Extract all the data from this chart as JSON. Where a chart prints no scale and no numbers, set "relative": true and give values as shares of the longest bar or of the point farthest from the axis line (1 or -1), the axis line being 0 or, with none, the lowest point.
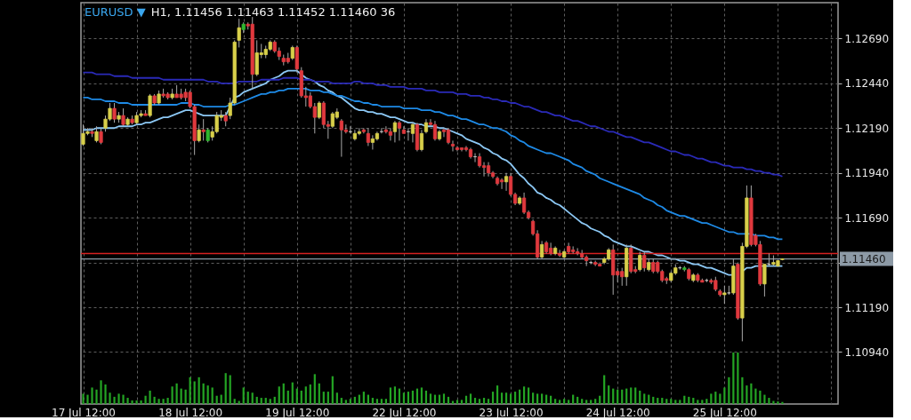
{
  "chart_data": [
    {
      "type": "candlestick",
      "title": "EURUSD ▼",
      "subtitle": "H1, 1.11456 1.11463 1.11452 1.11460 36",
      "categories": [
        "17 Jul 12:00",
        null,
        null,
        null,
        null,
        null,
        null,
        null,
        null,
        null,
        null,
        null,
        null,
        null,
        null,
        null,
        null,
        null,
        null,
        null,
        null,
        null,
        null,
        null,
        "18 Jul 12:00",
        null,
        null,
        null,
        null,
        null,
        null,
        null,
        null,
        null,
        null,
        null,
        null,
        null,
        null,
        null,
        null,
        null,
        null,
        null,
        null,
        null,
        null,
        null,
        "19 Jul 12:00",
        null,
        null,
        null,
        null,
        null,
        null,
        null,
        null,
        null,
        null,
        null,
        null,
        null,
        null,
        null,
        null,
        null,
        null,
        null,
        null,
        null,
        null,
        null,
        "22 Jul 12:00",
        null,
        null,
        null,
        null,
        null,
        null,
        null,
        null,
        null,
        null,
        null,
        null,
        null,
        null,
        null,
        null,
        null,
        null,
        null,
        null,
        null,
        null,
        null,
        "23 Jul 12:00",
        null,
        null,
        null,
        null,
        null,
        null,
        null,
        null,
        null,
        null,
        null,
        null,
        null,
        null,
        null,
        null,
        null,
        null,
        null,
        null,
        null,
        null,
        null,
        "24 Jul 12:00",
        null,
        null,
        null,
        null,
        null,
        null,
        null,
        null,
        null,
        null,
        null,
        null,
        null,
        null,
        null,
        null,
        null,
        null,
        null,
        null,
        null,
        null,
        null,
        "25 Jul 12:00",
        null,
        null,
        null,
        null,
        null,
        null,
        null,
        null,
        null,
        null,
        null,
        null,
        null,
        null,
        null,
        null,
        null,
        null,
        null,
        null,
        null,
        null,
        null,
        null,
        null
      ],
      "ohlc": [
        [
          1.121,
          1.1221,
          1.1209,
          1.1216
        ],
        [
          1.1216,
          1.1219,
          1.1215,
          1.1217
        ],
        [
          1.1217,
          1.1219,
          1.1214,
          1.1216
        ],
        [
          1.1212,
          1.122,
          1.1211,
          1.1217
        ],
        [
          1.1217,
          1.1219,
          1.121,
          1.1211
        ],
        [
          1.1219,
          1.1226,
          1.1217,
          1.1224
        ],
        [
          1.1224,
          1.1233,
          1.1223,
          1.123
        ],
        [
          1.123,
          1.1233,
          1.1222,
          1.1224
        ],
        [
          1.1224,
          1.1228,
          1.1222,
          1.1226
        ],
        [
          1.1226,
          1.123,
          1.122,
          1.1221
        ],
        [
          1.1221,
          1.1225,
          1.122,
          1.1224
        ],
        [
          1.1224,
          1.1226,
          1.1221,
          1.1222
        ],
        [
          1.1222,
          1.1228,
          1.1221,
          1.1226
        ],
        [
          1.1226,
          1.1229,
          1.1225,
          1.1227
        ],
        [
          1.1227,
          1.1229,
          1.1226,
          1.1226
        ],
        [
          1.1226,
          1.1238,
          1.1225,
          1.1237
        ],
        [
          1.1237,
          1.1238,
          1.1232,
          1.1233
        ],
        [
          1.1233,
          1.124,
          1.1232,
          1.1238
        ],
        [
          1.1238,
          1.1241,
          1.1236,
          1.1237
        ],
        [
          1.1238,
          1.1239,
          1.1235,
          1.1236
        ],
        [
          1.1236,
          1.1241,
          1.1235,
          1.1238
        ],
        [
          1.1238,
          1.1243,
          1.1236,
          1.1236
        ],
        [
          1.1238,
          1.1241,
          1.1235,
          1.1236
        ],
        [
          1.1239,
          1.1241,
          1.1234,
          1.1236
        ],
        [
          1.1239,
          1.124,
          1.123,
          1.1231
        ],
        [
          1.1231,
          1.1232,
          1.1204,
          1.1212
        ],
        [
          1.1212,
          1.1221,
          1.1211,
          1.1218
        ],
        [
          1.1218,
          1.1224,
          1.1212,
          1.1217
        ],
        [
          1.1212,
          1.1219,
          1.1211,
          1.1218
        ],
        [
          1.1214,
          1.122,
          1.1212,
          1.1217
        ],
        [
          1.1217,
          1.1228,
          1.1216,
          1.1226
        ],
        [
          1.1225,
          1.1229,
          1.1223,
          1.1226
        ],
        [
          1.1226,
          1.1228,
          1.122,
          1.1223
        ],
        [
          1.1226,
          1.1236,
          1.1224,
          1.1233
        ],
        [
          1.1233,
          1.1268,
          1.1232,
          1.1267
        ],
        [
          1.1268,
          1.128,
          1.1264,
          1.1275
        ],
        [
          1.1274,
          1.1278,
          1.1272,
          1.1277
        ],
        [
          1.1277,
          1.1278,
          1.1274,
          1.1276
        ],
        [
          1.1277,
          1.1281,
          1.1241,
          1.1249
        ],
        [
          1.1249,
          1.1268,
          1.1248,
          1.1261
        ],
        [
          1.126,
          1.1266,
          1.1258,
          1.1261
        ],
        [
          1.126,
          1.1265,
          1.1258,
          1.1263
        ],
        [
          1.1263,
          1.1268,
          1.1262,
          1.1267
        ],
        [
          1.1267,
          1.1268,
          1.1261,
          1.1262
        ],
        [
          1.1262,
          1.1264,
          1.1257,
          1.1259
        ],
        [
          1.1258,
          1.126,
          1.1254,
          1.1256
        ],
        [
          1.1258,
          1.1261,
          1.1255,
          1.1256
        ],
        [
          1.1258,
          1.1265,
          1.1257,
          1.1264
        ],
        [
          1.1264,
          1.1265,
          1.125,
          1.1252
        ],
        [
          1.1251,
          1.1253,
          1.1236,
          1.1237
        ],
        [
          1.1237,
          1.1242,
          1.1231,
          1.1236
        ],
        [
          1.1237,
          1.1239,
          1.123,
          1.1231
        ],
        [
          1.1231,
          1.1233,
          1.1216,
          1.1225
        ],
        [
          1.1225,
          1.1234,
          1.1224,
          1.1233
        ],
        [
          1.1233,
          1.1234,
          1.1219,
          1.1221
        ],
        [
          1.1221,
          1.1223,
          1.1213,
          1.122
        ],
        [
          1.122,
          1.1228,
          1.1219,
          1.1227
        ],
        [
          1.1225,
          1.123,
          1.1224,
          1.1228
        ],
        [
          1.1223,
          1.1224,
          1.1203,
          1.1218
        ],
        [
          1.1218,
          1.1221,
          1.1216,
          1.1217
        ],
        [
          1.1217,
          1.122,
          1.1216,
          1.1217
        ],
        [
          1.1213,
          1.1218,
          1.1212,
          1.1216
        ],
        [
          1.1216,
          1.1219,
          1.1215,
          1.1217
        ],
        [
          1.1218,
          1.1219,
          1.1216,
          1.1217
        ],
        [
          1.1216,
          1.1219,
          1.1209,
          1.1211
        ],
        [
          1.1211,
          1.1215,
          1.1207,
          1.1213
        ],
        [
          1.1213,
          1.1217,
          1.1212,
          1.1216
        ],
        [
          1.1217,
          1.1219,
          1.1216,
          1.1217
        ],
        [
          1.1218,
          1.122,
          1.1216,
          1.1217
        ],
        [
          1.1217,
          1.1219,
          1.1212,
          1.1215
        ],
        [
          1.1217,
          1.1223,
          1.1211,
          1.1222
        ],
        [
          1.1222,
          1.1223,
          1.1212,
          1.1219
        ],
        [
          1.1218,
          1.122,
          1.1216,
          1.1216
        ],
        [
          1.1217,
          1.1219,
          1.1212,
          1.1217
        ],
        [
          1.1216,
          1.1222,
          1.1211,
          1.1221
        ],
        [
          1.1221,
          1.1222,
          1.1206,
          1.1207
        ],
        [
          1.1207,
          1.1218,
          1.1206,
          1.1216
        ],
        [
          1.1217,
          1.1224,
          1.1216,
          1.1222
        ],
        [
          1.1222,
          1.1224,
          1.122,
          1.1221
        ],
        [
          1.1221,
          1.1223,
          1.1212,
          1.1213
        ],
        [
          1.1213,
          1.1218,
          1.1212,
          1.1217
        ],
        [
          1.1218,
          1.1219,
          1.1214,
          1.1217
        ],
        [
          1.1218,
          1.1219,
          1.121,
          1.1211
        ],
        [
          1.121,
          1.1212,
          1.1206,
          1.1209
        ],
        [
          1.1208,
          1.1209,
          1.1206,
          1.1207
        ],
        [
          1.1208,
          1.1208,
          1.1206,
          1.1207
        ],
        [
          1.1208,
          1.1209,
          1.1206,
          1.1207
        ],
        [
          1.1207,
          1.1208,
          1.1202,
          1.1203
        ],
        [
          1.1203,
          1.1205,
          1.12,
          1.1203
        ],
        [
          1.1203,
          1.1205,
          1.1197,
          1.1198
        ],
        [
          1.1198,
          1.12,
          1.1192,
          1.1197
        ],
        [
          1.1198,
          1.12,
          1.1192,
          1.1194
        ],
        [
          1.1194,
          1.1195,
          1.1191,
          1.1192
        ],
        [
          1.1191,
          1.1192,
          1.1187,
          1.1188
        ],
        [
          1.119,
          1.1191,
          1.1185,
          1.1189
        ],
        [
          1.1189,
          1.1194,
          1.1184,
          1.1192
        ],
        [
          1.1192,
          1.1194,
          1.1181,
          1.1182
        ],
        [
          1.1182,
          1.1183,
          1.1176,
          1.1177
        ],
        [
          1.1177,
          1.1181,
          1.1176,
          1.118
        ],
        [
          1.118,
          1.1183,
          1.1171,
          1.1172
        ],
        [
          1.1172,
          1.1173,
          1.1168,
          1.1169
        ],
        [
          1.1167,
          1.1168,
          1.1159,
          1.116
        ],
        [
          1.116,
          1.1162,
          1.1146,
          1.1147
        ],
        [
          1.1147,
          1.1156,
          1.1146,
          1.1154
        ],
        [
          1.1155,
          1.1156,
          1.1149,
          1.115
        ],
        [
          1.1152,
          1.1155,
          1.1148,
          1.1149
        ],
        [
          1.1149,
          1.1153,
          1.1148,
          1.1152
        ],
        [
          1.1149,
          1.1151,
          1.1147,
          1.1148
        ],
        [
          1.1147,
          1.1151,
          1.1146,
          1.115
        ],
        [
          1.1153,
          1.1155,
          1.1149,
          1.115
        ],
        [
          1.1151,
          1.1153,
          1.1149,
          1.115
        ],
        [
          1.115,
          1.1152,
          1.1148,
          1.1149
        ],
        [
          1.1149,
          1.1151,
          1.1146,
          1.1147
        ],
        [
          1.1147,
          1.1148,
          1.1142,
          1.1145
        ],
        [
          1.1144,
          1.1145,
          1.1143,
          1.1144
        ],
        [
          1.1144,
          1.1145,
          1.1142,
          1.1143
        ],
        [
          1.1143,
          1.1144,
          1.1142,
          1.1142
        ],
        [
          1.1144,
          1.1147,
          1.1143,
          1.1146
        ],
        [
          1.1146,
          1.1152,
          1.1145,
          1.1151
        ],
        [
          1.1151,
          1.1154,
          1.1126,
          1.1137
        ],
        [
          1.1139,
          1.1141,
          1.1133,
          1.1137
        ],
        [
          1.1139,
          1.1141,
          1.1131,
          1.1136
        ],
        [
          1.1136,
          1.1154,
          1.1131,
          1.1152
        ],
        [
          1.1152,
          1.1154,
          1.1138,
          1.1139
        ],
        [
          1.114,
          1.1142,
          1.1138,
          1.1139
        ],
        [
          1.114,
          1.115,
          1.1139,
          1.1148
        ],
        [
          1.1148,
          1.115,
          1.1139,
          1.1141
        ],
        [
          1.114,
          1.1146,
          1.1139,
          1.1144
        ],
        [
          1.1144,
          1.1146,
          1.1138,
          1.1139
        ],
        [
          1.1144,
          1.1145,
          1.1138,
          1.1139
        ],
        [
          1.1139,
          1.114,
          1.1133,
          1.1134
        ],
        [
          1.1135,
          1.1136,
          1.1132,
          1.1134
        ],
        [
          1.1134,
          1.1139,
          1.1133,
          1.1138
        ],
        [
          1.1138,
          1.1143,
          1.1137,
          1.1141
        ],
        [
          1.1141,
          1.1142,
          1.114,
          1.1141
        ],
        [
          1.114,
          1.1142,
          1.1139,
          1.1141
        ],
        [
          1.114,
          1.1141,
          1.1134,
          1.1135
        ],
        [
          1.1134,
          1.1138,
          1.1133,
          1.1137
        ],
        [
          1.1137,
          1.1138,
          1.1133,
          1.1134
        ],
        [
          1.1134,
          1.1135,
          1.1133,
          1.1133
        ],
        [
          1.1134,
          1.1135,
          1.1133,
          1.1134
        ],
        [
          1.1134,
          1.1135,
          1.1132,
          1.1133
        ],
        [
          1.1134,
          1.1136,
          1.1128,
          1.1129
        ],
        [
          1.1128,
          1.1129,
          1.1125,
          1.1126
        ],
        [
          1.1126,
          1.1131,
          1.1121,
          1.1127
        ],
        [
          1.1127,
          1.1131,
          1.1126,
          1.1127
        ],
        [
          1.1127,
          1.1146,
          1.1126,
          1.1142
        ],
        [
          1.1143,
          1.1144,
          1.1112,
          1.1113
        ],
        [
          1.1113,
          1.1155,
          1.11,
          1.1153
        ],
        [
          1.1153,
          1.1187,
          1.1152,
          1.118
        ],
        [
          1.118,
          1.1187,
          1.1153,
          1.1154
        ],
        [
          1.1159,
          1.116,
          1.1153,
          1.1154
        ],
        [
          1.1154,
          1.1156,
          1.1131,
          1.1132
        ],
        [
          1.1132,
          1.1143,
          1.1125,
          1.1143
        ],
        [
          1.1143,
          1.1149,
          1.1142,
          1.1143
        ],
        [
          1.1143,
          1.1148,
          1.1142,
          1.1144
        ],
        [
          1.1142,
          1.1145,
          1.1142,
          1.1145
        ],
        [
          1.11456,
          1.11463,
          1.11452,
          1.1146
        ],
        null,
        null,
        null,
        null,
        null,
        null,
        null,
        null,
        null,
        null,
        null,
        null
      ],
      "colors": [
        "#d8cf4a",
        "#d8cf4a",
        "#e0393e",
        "#d8cf4a",
        "#e0393e",
        "#d8cf4a",
        "#d8cf4a",
        "#e0393e",
        "#d8cf4a",
        "#e0393e",
        "#d8cf4a",
        "#e0393e",
        "#d8cf4a",
        "#d8cf4a",
        "#e0393e",
        "#d8cf4a",
        "#e0393e",
        "#d8cf4a",
        "#e0393e",
        "#e0393e",
        "#d8cf4a",
        "#e0393e",
        "#e0393e",
        "#e0393e",
        "#e0393e",
        "#e0393e",
        "#d8cf4a",
        "#e0393e",
        "#2fb52f",
        "#d8cf4a",
        "#d8cf4a",
        "#d8cf4a",
        "#e0393e",
        "#d8cf4a",
        "#d8cf4a",
        "#d8cf4a",
        "#2fb52f",
        "#e0393e",
        "#e0393e",
        "#d8cf4a",
        "#d8cf4a",
        "#d8cf4a",
        "#d8cf4a",
        "#e0393e",
        "#e0393e",
        "#e0393e",
        "#e0393e",
        "#d8cf4a",
        "#e0393e",
        "#e0393e",
        "#e0393e",
        "#e0393e",
        "#e0393e",
        "#d8cf4a",
        "#e0393e",
        "#e0393e",
        "#d8cf4a",
        "#d8cf4a",
        "#e0393e",
        "#e0393e",
        "#c8c8c8",
        "#d8cf4a",
        "#d8cf4a",
        "#e0393e",
        "#e0393e",
        "#d8cf4a",
        "#d8cf4a",
        "#c8c8c8",
        "#e0393e",
        "#e0393e",
        "#d8cf4a",
        "#e0393e",
        "#e0393e",
        "#c8c8c8",
        "#d8cf4a",
        "#e0393e",
        "#d8cf4a",
        "#d8cf4a",
        "#e0393e",
        "#e0393e",
        "#d8cf4a",
        "#e0393e",
        "#e0393e",
        "#e0393e",
        "#e0393e",
        "#e0393e",
        "#e0393e",
        "#e0393e",
        "#c8c8c8",
        "#e0393e",
        "#e0393e",
        "#e0393e",
        "#e0393e",
        "#e0393e",
        "#e0393e",
        "#d8cf4a",
        "#e0393e",
        "#e0393e",
        "#d8cf4a",
        "#e0393e",
        "#e0393e",
        "#e0393e",
        "#e0393e",
        "#d8cf4a",
        "#e0393e",
        "#e0393e",
        "#d8cf4a",
        "#e0393e",
        "#d8cf4a",
        "#e0393e",
        "#e0393e",
        "#e0393e",
        "#e0393e",
        "#e0393e",
        "#c8c8c8",
        "#e0393e",
        "#e0393e",
        "#d8cf4a",
        "#d8cf4a",
        "#e0393e",
        "#e0393e",
        "#e0393e",
        "#d8cf4a",
        "#e0393e",
        "#e0393e",
        "#d8cf4a",
        "#e0393e",
        "#d8cf4a",
        "#e0393e",
        "#e0393e",
        "#e0393e",
        "#e0393e",
        "#d8cf4a",
        "#d8cf4a",
        "#c8c8c8",
        "#2fb52f",
        "#e0393e",
        "#d8cf4a",
        "#e0393e",
        "#e0393e",
        "#c8c8c8",
        "#e0393e",
        "#e0393e",
        "#e0393e",
        "#d8cf4a",
        "#c8c8c8",
        "#d8cf4a",
        "#e0393e",
        "#d8cf4a",
        "#d8cf4a",
        "#e0393e",
        "#e0393e",
        "#e0393e",
        "#d8cf4a",
        "#c8c8c8",
        "#d8cf4a",
        "#d8cf4a",
        "#d8cf4a",
        null,
        null,
        null,
        null,
        null,
        null,
        null,
        null,
        null,
        null,
        null,
        null
      ],
      "series": [
        {
          "type": "line",
          "color": "#8cc8f5",
          "values": [
            1.1218,
            1.1218,
            1.1218,
            1.1219,
            1.1219,
            1.1219,
            1.1219,
            1.1219,
            1.122,
            1.122,
            1.122,
            1.122,
            1.1221,
            1.1221,
            1.1222,
            1.1222,
            1.1223,
            1.1224,
            1.1225,
            1.1225,
            1.1226,
            1.1227,
            1.1228,
            1.1229,
            1.1229,
            1.1228,
            1.1227,
            1.1226,
            1.1226,
            1.1226,
            1.1226,
            1.1226,
            1.1226,
            1.1231,
            1.1236,
            1.1237,
            1.1239,
            1.124,
            1.1241,
            1.1242,
            1.1243,
            1.1244,
            1.1246,
            1.1247,
            1.1248,
            1.125,
            1.1251,
            1.1251,
            1.1251,
            1.1249,
            1.1247,
            1.1246,
            1.1245,
            1.1243,
            1.1242,
            1.124,
            1.1239,
            1.1237,
            1.1236,
            1.1234,
            1.1232,
            1.123,
            1.1229,
            1.1229,
            1.1228,
            1.1228,
            1.1227,
            1.1227,
            1.1226,
            1.1225,
            1.1225,
            1.1224,
            1.1223,
            1.1222,
            1.1222,
            1.1221,
            1.1221,
            1.122,
            1.122,
            1.122,
            1.1219,
            1.1219,
            1.1218,
            1.1217,
            1.1216,
            1.1215,
            1.1213,
            1.1212,
            1.1211,
            1.121,
            1.1208,
            1.1207,
            1.1205,
            1.1204,
            1.1202,
            1.1201,
            1.1199,
            1.1196,
            1.1193,
            1.1191,
            1.1188,
            1.1186,
            1.1183,
            1.1182,
            1.118,
            1.1179,
            1.1177,
            1.1176,
            1.1174,
            1.1172,
            1.117,
            1.1168,
            1.1166,
            1.1165,
            1.1163,
            1.1162,
            1.1161,
            1.1159,
            1.1158,
            1.1156,
            1.1155,
            1.1154,
            1.1153,
            1.1153,
            1.1152,
            1.1151,
            1.115,
            1.115,
            1.1149,
            1.1148,
            1.1148,
            1.1147,
            1.1146,
            1.1146,
            1.1145,
            1.1145,
            1.1144,
            1.1143,
            1.1143,
            1.1142,
            1.1141,
            1.1141,
            1.114,
            1.1139,
            1.1138,
            1.1137,
            1.1137,
            null,
            1.1139,
            1.1141,
            1.1141,
            1.1142,
            1.1142,
            1.1142,
            1.1142,
            1.1142,
            1.1142,
            1.1142,
            null,
            null,
            null,
            null,
            null,
            null,
            null,
            null,
            null,
            null,
            null,
            null
          ]
        },
        {
          "type": "line",
          "color": "#1e8ae6",
          "values": [
            1.1236,
            1.1236,
            1.1235,
            1.1235,
            1.1235,
            1.1234,
            1.1234,
            1.1234,
            1.1233,
            1.1233,
            1.1233,
            1.1232,
            1.1232,
            1.1232,
            1.1232,
            1.1232,
            1.1232,
            1.1232,
            1.1232,
            1.1232,
            1.1232,
            1.1232,
            1.1233,
            1.1233,
            1.1233,
            1.1232,
            1.1232,
            1.1231,
            1.1231,
            1.1231,
            1.1231,
            1.1231,
            1.1231,
            1.1232,
            1.1232,
            1.1233,
            1.1234,
            1.1235,
            1.1236,
            1.1237,
            1.1238,
            1.1238,
            1.1239,
            1.1239,
            1.124,
            1.124,
            1.1241,
            1.1241,
            1.1241,
            1.1241,
            1.1241,
            1.124,
            1.124,
            1.124,
            1.1239,
            1.1239,
            1.1238,
            1.1237,
            1.1237,
            1.1236,
            1.1235,
            1.1234,
            1.1234,
            1.1233,
            1.1233,
            1.1232,
            1.1232,
            1.1231,
            1.1231,
            1.1231,
            1.1231,
            1.1231,
            1.123,
            1.123,
            1.123,
            1.123,
            1.1229,
            1.1229,
            1.1229,
            1.1228,
            1.1228,
            1.1227,
            1.1226,
            1.1226,
            1.1225,
            1.1224,
            1.1224,
            1.1223,
            1.1222,
            1.1221,
            1.1221,
            1.122,
            1.1219,
            1.1219,
            1.1218,
            1.1217,
            1.1215,
            1.1214,
            1.1212,
            1.1211,
            1.1209,
            1.1208,
            1.1207,
            1.1206,
            1.1205,
            1.1205,
            1.1204,
            1.1203,
            1.1202,
            1.1201,
            1.1199,
            1.1198,
            1.1197,
            1.1195,
            1.1194,
            1.1193,
            1.1191,
            1.119,
            1.1189,
            1.1188,
            1.1187,
            1.1186,
            1.1185,
            1.1184,
            1.1183,
            1.1182,
            1.118,
            1.1179,
            1.1178,
            1.1176,
            1.1175,
            1.1173,
            1.1172,
            1.1171,
            1.117,
            1.117,
            1.1169,
            1.1168,
            1.1167,
            1.1166,
            1.1166,
            1.1165,
            1.1164,
            1.1163,
            1.1162,
            1.1161,
            1.1161,
            1.116,
            1.116,
            1.116,
            1.116,
            1.1159,
            1.1159,
            1.1159,
            1.1158,
            1.1158,
            1.1157,
            1.1157,
            null,
            null,
            null,
            null,
            null,
            null,
            null,
            null,
            null,
            null,
            null,
            null
          ]
        },
        {
          "type": "line",
          "color": "#2a2ab8",
          "values": [
            1.125,
            1.125,
            1.125,
            1.1249,
            1.1249,
            1.1249,
            1.1249,
            1.1248,
            1.1248,
            1.1248,
            1.1248,
            1.1247,
            1.1247,
            1.1247,
            1.1247,
            1.1247,
            1.1247,
            1.1247,
            1.1246,
            1.1246,
            1.1246,
            1.1246,
            1.1246,
            1.1246,
            1.1246,
            1.1246,
            1.1246,
            1.1246,
            1.1245,
            1.1245,
            1.1245,
            1.1244,
            1.1244,
            1.1244,
            1.1244,
            1.1245,
            1.1245,
            1.1245,
            1.1245,
            1.1245,
            1.1246,
            1.1246,
            1.1246,
            1.1246,
            1.1246,
            1.1247,
            1.1247,
            1.1247,
            1.1247,
            1.1246,
            1.1246,
            1.1246,
            1.1245,
            1.1245,
            1.1245,
            1.1245,
            1.1244,
            1.1244,
            1.1244,
            1.1244,
            1.1244,
            1.1245,
            1.1245,
            1.1244,
            1.1244,
            1.1244,
            1.1243,
            1.1243,
            1.1243,
            1.1242,
            1.1242,
            1.1242,
            1.1242,
            1.1241,
            1.1241,
            1.1241,
            1.1241,
            1.124,
            1.124,
            1.124,
            1.1239,
            1.1239,
            1.1239,
            1.1239,
            1.1238,
            1.1238,
            1.1238,
            1.1237,
            1.1237,
            1.1237,
            1.1236,
            1.1236,
            1.1235,
            1.1235,
            1.1234,
            1.1234,
            1.1233,
            1.1233,
            1.1232,
            1.1231,
            1.1231,
            1.123,
            1.1229,
            1.1228,
            1.1228,
            1.1227,
            1.1226,
            1.1226,
            1.1225,
            1.1224,
            1.1223,
            1.1223,
            1.1222,
            1.1221,
            1.122,
            1.122,
            1.1219,
            1.1218,
            1.1217,
            1.1217,
            1.1216,
            1.1215,
            1.1214,
            1.1214,
            1.1213,
            1.1212,
            1.1211,
            1.1211,
            1.121,
            1.1209,
            1.1208,
            1.1207,
            1.1206,
            1.1206,
            1.1205,
            1.1204,
            1.1204,
            1.1203,
            1.1202,
            1.1202,
            1.1201,
            1.12,
            1.12,
            1.1199,
            1.1198,
            1.1198,
            1.1197,
            1.1197,
            1.1197,
            1.1196,
            1.1196,
            1.1195,
            1.1195,
            1.1194,
            1.1194,
            1.1193,
            1.1193,
            1.1192,
            null,
            null,
            null,
            null,
            null,
            null,
            null,
            null,
            null,
            null,
            null,
            null
          ]
        }
      ],
      "ref_lines": [
        {
          "axis": "y",
          "value": 1.1149,
          "color": "#d62020"
        },
        {
          "axis": "y",
          "value": 1.1146,
          "label": "1.11460",
          "color": "#8d9aa6"
        }
      ],
      "ylim": [
        1.1065,
        1.1289
      ],
      "yticks": [
        {
          "value": 1.1094,
          "label": "1.10940"
        },
        {
          "value": 1.1119,
          "label": "1.11190"
        },
        {
          "value": 1.1144,
          "label": null
        },
        {
          "value": 1.1169,
          "label": "1.11690"
        },
        {
          "value": 1.1194,
          "label": "1.11940"
        },
        {
          "value": 1.1219,
          "label": "1.12190"
        },
        {
          "value": 1.1244,
          "label": "1.12440"
        },
        {
          "value": 1.1269,
          "label": "1.12690"
        }
      ],
      "grid": true
    },
    {
      "type": "bar",
      "relative": true,
      "color": "#24a524",
      "categories": [
        null,
        null,
        null,
        null,
        null,
        null,
        null,
        null,
        null,
        null,
        null,
        null,
        null,
        null,
        null,
        null,
        null,
        null,
        null,
        null,
        null,
        null,
        null,
        null,
        null,
        null,
        null,
        null,
        null,
        null,
        null,
        null,
        null,
        null,
        null,
        null,
        null,
        null,
        null,
        null,
        null,
        null,
        null,
        null,
        null,
        null,
        null,
        null,
        null,
        null,
        null,
        null,
        null,
        null,
        null,
        null,
        null,
        null,
        null,
        null,
        null,
        null,
        null,
        null,
        null,
        null,
        null,
        null,
        null,
        null,
        null,
        null,
        null,
        null,
        null,
        null,
        null,
        null,
        null,
        null,
        null,
        null,
        null,
        null,
        null,
        null,
        null,
        null,
        null,
        null,
        null,
        null,
        null,
        null,
        null,
        null,
        null,
        null,
        null,
        null,
        null,
        null,
        null,
        null,
        null,
        null,
        null,
        null,
        null,
        null,
        null,
        null,
        null,
        null,
        null,
        null,
        null,
        null,
        null,
        null,
        null,
        null,
        null,
        null,
        null,
        null,
        null,
        null,
        null,
        null,
        null,
        null,
        null,
        null,
        null,
        null,
        null,
        null,
        null,
        null,
        null,
        null,
        null,
        null,
        null,
        null,
        null,
        null,
        null,
        null,
        null,
        null,
        null,
        null,
        null,
        null,
        null,
        null,
        null,
        null,
        null,
        null,
        null,
        null,
        null,
        null,
        null,
        null,
        null,
        null
      ],
      "values": [
        0.2,
        0.18,
        0.32,
        0.28,
        0.46,
        0.38,
        0.22,
        0.14,
        0.2,
        0.18,
        0.12,
        0.07,
        0.07,
        0.07,
        0.16,
        0.26,
        0.14,
        0.1,
        0.1,
        0.12,
        0.34,
        0.4,
        0.3,
        0.28,
        0.52,
        0.44,
        0.52,
        0.4,
        0.36,
        0.32,
        0.16,
        0.18,
        0.6,
        0.56,
        0.1,
        0.06,
        0.32,
        0.24,
        0.22,
        0.14,
        0.12,
        0.12,
        0.1,
        0.14,
        0.34,
        0.4,
        0.26,
        0.42,
        0.3,
        0.26,
        0.34,
        0.38,
        0.58,
        0.4,
        0.24,
        0.24,
        0.54,
        0.22,
        0.12,
        0.08,
        0.1,
        0.14,
        0.18,
        0.24,
        0.18,
        0.12,
        0.1,
        0.1,
        0.1,
        0.32,
        0.34,
        0.3,
        0.22,
        0.24,
        0.26,
        0.3,
        0.32,
        0.26,
        0.2,
        0.18,
        0.18,
        0.2,
        0.14,
        0.06,
        0.08,
        0.08,
        0.16,
        0.2,
        0.12,
        0.1,
        0.12,
        0.1,
        0.24,
        0.36,
        0.22,
        0.22,
        0.2,
        0.24,
        0.28,
        0.34,
        0.32,
        0.22,
        0.2,
        0.2,
        0.18,
        0.16,
        0.1,
        0.08,
        0.1,
        0.08,
        0.18,
        0.14,
        0.1,
        0.08,
        0.08,
        0.1,
        0.16,
        0.56,
        0.36,
        0.3,
        0.28,
        0.28,
        0.3,
        0.32,
        0.32,
        0.26,
        0.2,
        0.18,
        0.14,
        0.12,
        0.12,
        0.1,
        0.1,
        0.08,
        0.08,
        0.16,
        0.14,
        0.12,
        0.08,
        0.08,
        0.1,
        0.2,
        0.24,
        0.2,
        0.32,
        0.52,
        1,
        1,
        0.52,
        0.36,
        0.4,
        0.3,
        0.26,
        0.18,
        0.12,
        0.06,
        0.05,
        0.04,
        null,
        null,
        null,
        null,
        null,
        null,
        null,
        null,
        null,
        null,
        null,
        null
      ]
    }
  ]
}
